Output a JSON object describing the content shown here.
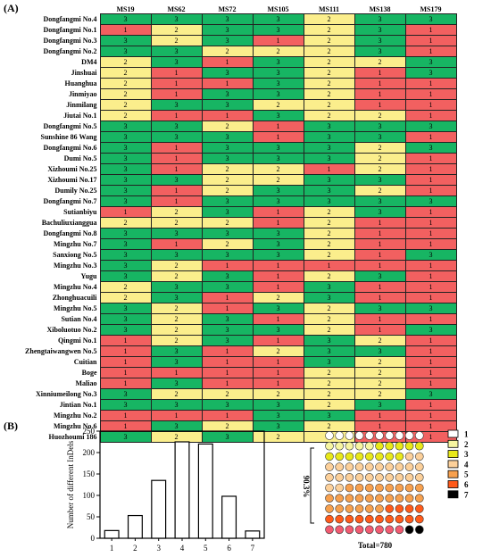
{
  "panel_a_label": "(A)",
  "panel_b_label": "(B)",
  "chart_data": [
    {
      "type": "heatmap",
      "colors": {
        "1": "#f26060",
        "2": "#fbee8c",
        "3": "#17b563"
      },
      "columns": [
        "MS19",
        "MS62",
        "MS72",
        "MS105",
        "MS111",
        "MS138",
        "MS179"
      ],
      "rows": [
        {
          "name": "Dongfangmi No.4",
          "values": [
            3,
            3,
            3,
            3,
            2,
            3,
            3
          ]
        },
        {
          "name": "Dongfangmi No.1",
          "values": [
            1,
            2,
            3,
            3,
            2,
            3,
            1
          ]
        },
        {
          "name": "Dongfangmi No.3",
          "values": [
            3,
            2,
            3,
            1,
            2,
            3,
            1
          ]
        },
        {
          "name": "Dongfangmi No.2",
          "values": [
            3,
            3,
            2,
            2,
            2,
            3,
            1
          ]
        },
        {
          "name": "DM4",
          "values": [
            2,
            3,
            1,
            3,
            2,
            2,
            3
          ]
        },
        {
          "name": "Jinshuai",
          "values": [
            2,
            1,
            3,
            3,
            2,
            1,
            3
          ]
        },
        {
          "name": "Huanghua",
          "values": [
            2,
            1,
            1,
            3,
            2,
            1,
            1
          ]
        },
        {
          "name": "Jinmiyao",
          "values": [
            2,
            1,
            3,
            3,
            2,
            1,
            1
          ]
        },
        {
          "name": "Jinmilang",
          "values": [
            2,
            3,
            3,
            2,
            2,
            1,
            1
          ]
        },
        {
          "name": "Jiutai No.1",
          "values": [
            2,
            1,
            1,
            3,
            2,
            2,
            1
          ]
        },
        {
          "name": "Dongfangmi No.5",
          "values": [
            3,
            3,
            2,
            1,
            3,
            3,
            3
          ]
        },
        {
          "name": "Sunshine 86 Wang",
          "values": [
            3,
            3,
            3,
            1,
            3,
            3,
            1
          ]
        },
        {
          "name": "Dongfangmi No.6",
          "values": [
            3,
            1,
            3,
            3,
            3,
            2,
            3
          ]
        },
        {
          "name": "Dumi No.5",
          "values": [
            3,
            1,
            3,
            3,
            3,
            2,
            1
          ]
        },
        {
          "name": "Xizhoumi No.25",
          "values": [
            3,
            1,
            2,
            2,
            1,
            2,
            1
          ]
        },
        {
          "name": "Xizhoumi No.17",
          "values": [
            3,
            3,
            2,
            2,
            3,
            3,
            1
          ]
        },
        {
          "name": "Dumily No.25",
          "values": [
            3,
            1,
            2,
            3,
            3,
            2,
            1
          ]
        },
        {
          "name": "Dongfangmi No.7",
          "values": [
            3,
            1,
            3,
            3,
            3,
            3,
            3
          ]
        },
        {
          "name": "Sutianbiyu",
          "values": [
            1,
            2,
            3,
            1,
            2,
            3,
            1
          ]
        },
        {
          "name": "Bachuliuxianggua",
          "values": [
            2,
            2,
            2,
            1,
            2,
            1,
            1
          ]
        },
        {
          "name": "Dongfangmi No.8",
          "values": [
            3,
            3,
            3,
            3,
            2,
            1,
            1
          ]
        },
        {
          "name": "Mingzhu No.7",
          "values": [
            3,
            1,
            2,
            3,
            2,
            1,
            1
          ]
        },
        {
          "name": "Sanxiong No.5",
          "values": [
            3,
            3,
            3,
            3,
            2,
            1,
            3
          ]
        },
        {
          "name": "Mingzhu No.3",
          "values": [
            3,
            2,
            1,
            1,
            1,
            1,
            1
          ]
        },
        {
          "name": "Yugu",
          "values": [
            3,
            2,
            3,
            1,
            2,
            3,
            1
          ]
        },
        {
          "name": "Mingzhu No.4",
          "values": [
            2,
            3,
            3,
            1,
            3,
            1,
            1
          ]
        },
        {
          "name": "Zhonghuacuili",
          "values": [
            2,
            3,
            1,
            2,
            3,
            1,
            1
          ]
        },
        {
          "name": "Mingzhu No.5",
          "values": [
            3,
            2,
            1,
            3,
            2,
            3,
            3
          ]
        },
        {
          "name": "Sutian No.4",
          "values": [
            3,
            2,
            3,
            1,
            2,
            1,
            1
          ]
        },
        {
          "name": "Xiboluotuo No.2",
          "values": [
            3,
            2,
            3,
            3,
            2,
            1,
            3
          ]
        },
        {
          "name": "Qingmi No.1",
          "values": [
            1,
            2,
            3,
            1,
            3,
            2,
            1
          ]
        },
        {
          "name": "Zhengtaiwangwen No.5",
          "values": [
            1,
            3,
            1,
            2,
            3,
            3,
            1
          ]
        },
        {
          "name": "Cuitian",
          "values": [
            1,
            3,
            1,
            1,
            3,
            2,
            1
          ]
        },
        {
          "name": "Boge",
          "values": [
            1,
            1,
            1,
            1,
            2,
            2,
            1
          ]
        },
        {
          "name": "Maliao",
          "values": [
            1,
            3,
            1,
            1,
            2,
            2,
            1
          ]
        },
        {
          "name": "Xinniumeilong No.3",
          "values": [
            3,
            2,
            2,
            2,
            2,
            2,
            3
          ]
        },
        {
          "name": "Jintian No.1",
          "values": [
            3,
            3,
            3,
            3,
            2,
            3,
            1
          ]
        },
        {
          "name": "Mingzhu No.2",
          "values": [
            1,
            1,
            1,
            3,
            3,
            1,
            1
          ]
        },
        {
          "name": "Mingzhu No.6",
          "values": [
            1,
            3,
            2,
            3,
            2,
            1,
            1
          ]
        },
        {
          "name": "Huozhoumi 186",
          "values": [
            3,
            2,
            3,
            2,
            2,
            1,
            1
          ]
        }
      ]
    },
    {
      "type": "bar",
      "categories": [
        "1",
        "2",
        "3",
        "4",
        "5",
        "6",
        "7"
      ],
      "values": [
        18,
        53,
        135,
        225,
        220,
        98,
        17
      ],
      "ylabel": "Number of different InDels",
      "ylim": [
        0,
        250
      ],
      "yticks": [
        "0",
        "50",
        "100",
        "150",
        "200",
        "250"
      ]
    },
    {
      "type": "table",
      "kind": "dot-matrix",
      "annotation_percent": "90.3%",
      "total_label": "Total=780",
      "legend": [
        {
          "label": "1",
          "color": "#ffffff"
        },
        {
          "label": "2",
          "color": "#f6f5a0"
        },
        {
          "label": "3",
          "color": "#e8e81a"
        },
        {
          "label": "4",
          "color": "#fcd09a"
        },
        {
          "label": "5",
          "color": "#f7a04e"
        },
        {
          "label": "6",
          "color": "#ff5a1a"
        },
        {
          "label": "7",
          "color": "#000000"
        }
      ],
      "dots": [
        {
          "category": "1",
          "count": 10
        },
        {
          "category": "2",
          "count": 5
        },
        {
          "category": "3",
          "count": 13
        },
        {
          "category": "4",
          "count": 24
        },
        {
          "category": "5",
          "count": 24
        },
        {
          "category": "6",
          "count": 14
        },
        {
          "category": "pink",
          "count": 8
        },
        {
          "category": "7",
          "count": 2
        }
      ],
      "dot_colors": {
        "pink": "#f25a70"
      }
    }
  ]
}
